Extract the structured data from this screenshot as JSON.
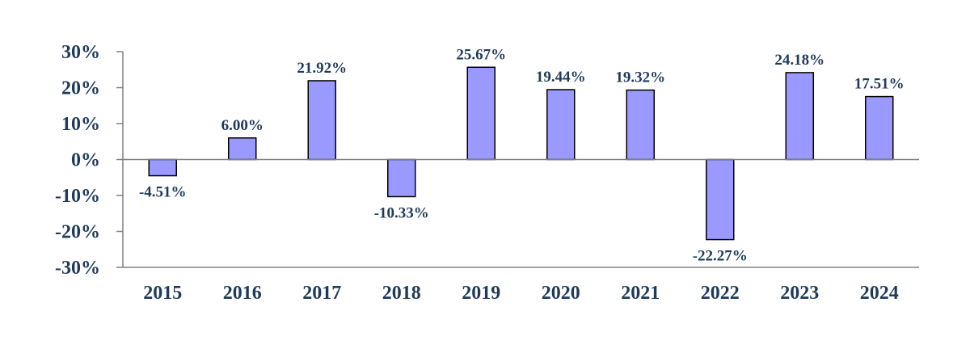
{
  "chart_data": {
    "type": "bar",
    "title": "",
    "xlabel": "",
    "ylabel": "",
    "categories": [
      "2015",
      "2016",
      "2017",
      "2018",
      "2019",
      "2020",
      "2021",
      "2022",
      "2023",
      "2024"
    ],
    "values": [
      -4.51,
      6.0,
      21.92,
      -10.33,
      25.67,
      19.44,
      19.32,
      -22.27,
      24.18,
      17.51
    ],
    "data_labels": [
      "-4.51%",
      "6.00%",
      "21.92%",
      "-10.33%",
      "25.67%",
      "19.44%",
      "19.32%",
      "-22.27%",
      "24.18%",
      "17.51%"
    ],
    "ylim": [
      -30,
      30
    ],
    "yticks": [
      30,
      20,
      10,
      0,
      -10,
      -20,
      -30
    ],
    "ytick_labels": [
      "30%",
      "20%",
      "10%",
      "0%",
      "-10%",
      "-20%",
      "-30%"
    ],
    "grid": false,
    "legend": "none",
    "bar_color": "#9999ff",
    "bar_edge_color": "#000000",
    "text_color": "#1f3a5a"
  }
}
